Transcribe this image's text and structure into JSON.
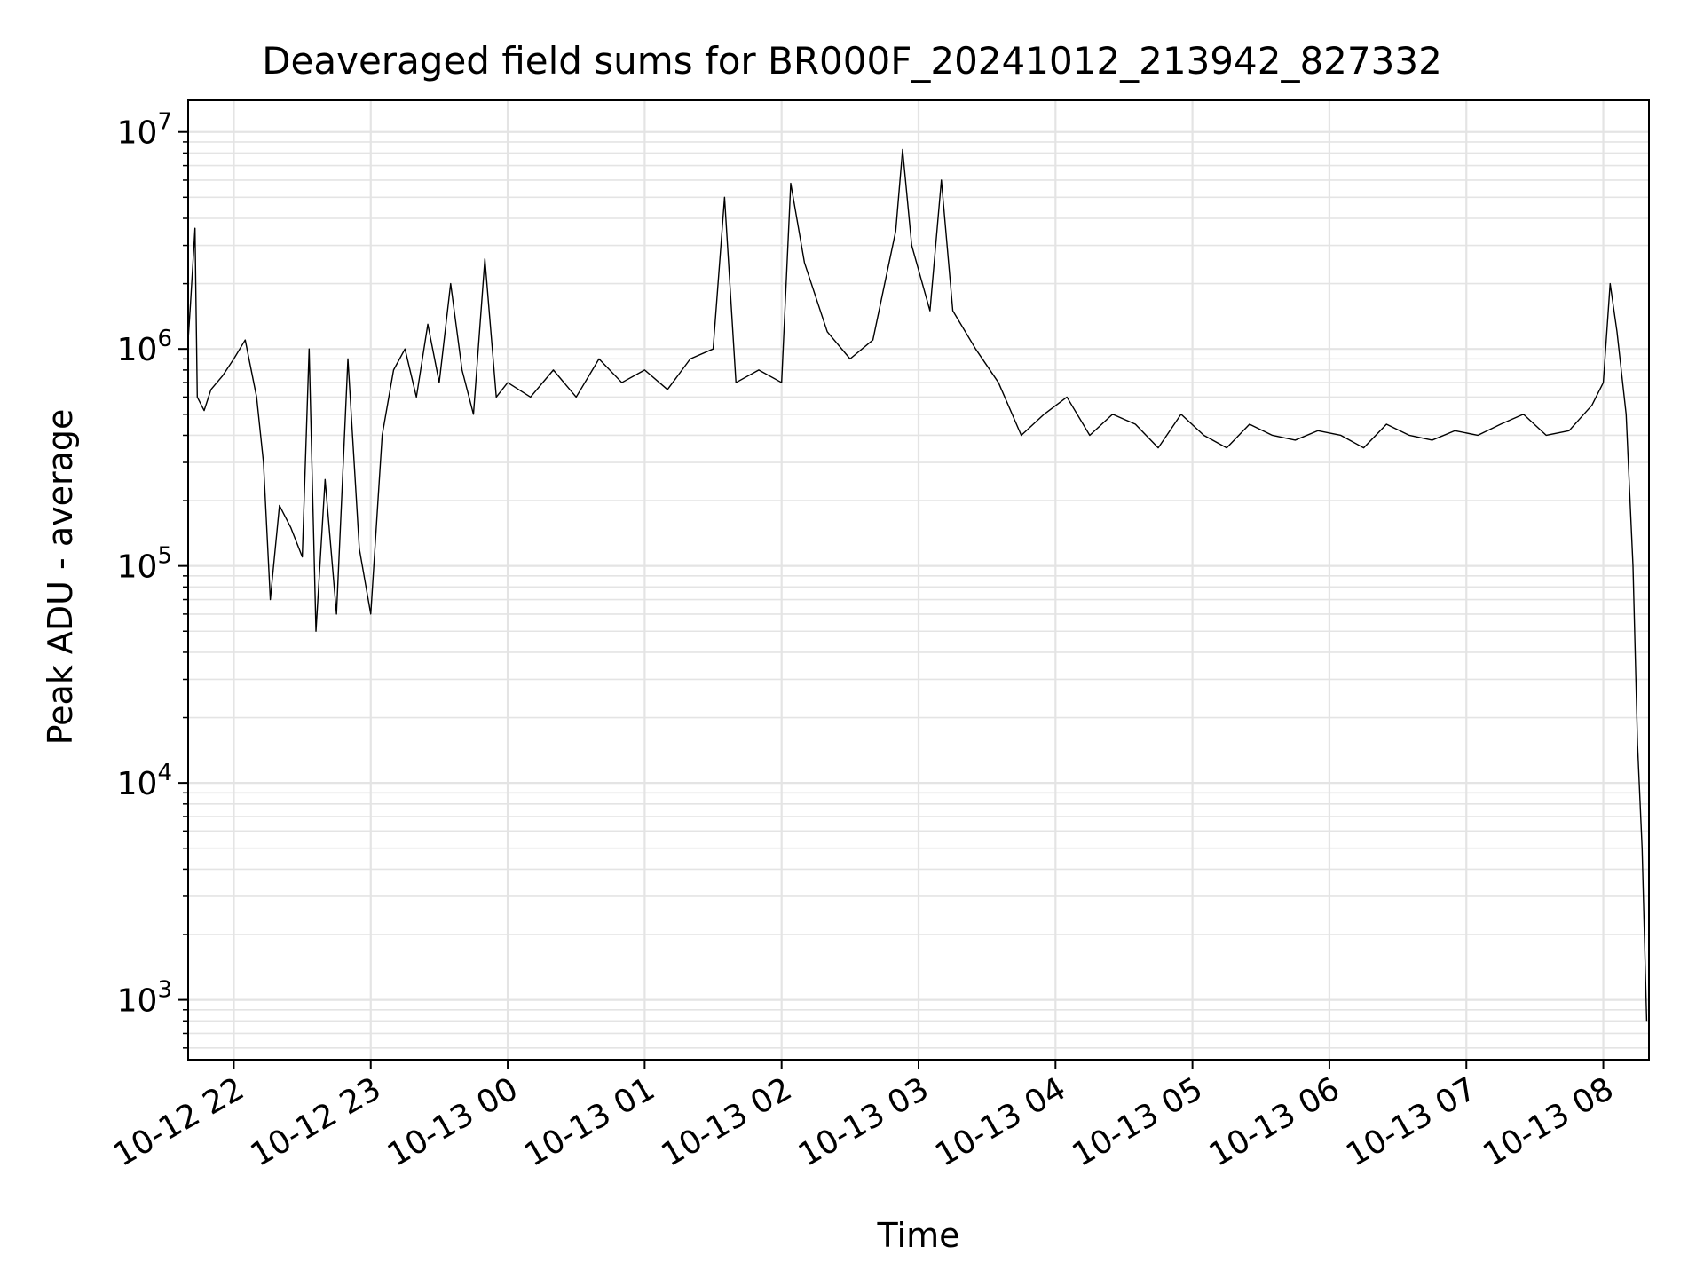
{
  "chart_data": {
    "type": "line",
    "title": "Deaveraged field sums for BR000F_20241012_213942_827332",
    "xlabel": "Time",
    "ylabel": "Peak ADU - average",
    "yscale": "log",
    "ylim": [
      530,
      14000000
    ],
    "xlim": [
      "2024-10-12 21:40",
      "2024-10-13 08:20"
    ],
    "grid": true,
    "line_color": "#000000",
    "x_ticks": [
      {
        "time": "2024-10-12 22:00",
        "label": "10-12 22"
      },
      {
        "time": "2024-10-12 23:00",
        "label": "10-12 23"
      },
      {
        "time": "2024-10-13 00:00",
        "label": "10-13 00"
      },
      {
        "time": "2024-10-13 01:00",
        "label": "10-13 01"
      },
      {
        "time": "2024-10-13 02:00",
        "label": "10-13 02"
      },
      {
        "time": "2024-10-13 03:00",
        "label": "10-13 03"
      },
      {
        "time": "2024-10-13 04:00",
        "label": "10-13 04"
      },
      {
        "time": "2024-10-13 05:00",
        "label": "10-13 05"
      },
      {
        "time": "2024-10-13 06:00",
        "label": "10-13 06"
      },
      {
        "time": "2024-10-13 07:00",
        "label": "10-13 07"
      },
      {
        "time": "2024-10-13 08:00",
        "label": "10-13 08"
      }
    ],
    "y_ticks": [
      {
        "value": 1000,
        "base": "10",
        "exp": "3"
      },
      {
        "value": 10000,
        "base": "10",
        "exp": "4"
      },
      {
        "value": 100000,
        "base": "10",
        "exp": "5"
      },
      {
        "value": 1000000,
        "base": "10",
        "exp": "6"
      },
      {
        "value": 10000000,
        "base": "10",
        "exp": "7"
      }
    ],
    "series": [
      {
        "points": [
          [
            "2024-10-12 21:40",
            1100000
          ],
          [
            "2024-10-12 21:41",
            1600000
          ],
          [
            "2024-10-12 21:43",
            3600000
          ],
          [
            "2024-10-12 21:44",
            600000
          ],
          [
            "2024-10-12 21:47",
            520000
          ],
          [
            "2024-10-12 21:50",
            650000
          ],
          [
            "2024-10-12 21:55",
            750000
          ],
          [
            "2024-10-12 22:00",
            900000
          ],
          [
            "2024-10-12 22:05",
            1100000
          ],
          [
            "2024-10-12 22:10",
            600000
          ],
          [
            "2024-10-12 22:13",
            300000
          ],
          [
            "2024-10-12 22:16",
            70000
          ],
          [
            "2024-10-12 22:20",
            190000
          ],
          [
            "2024-10-12 22:25",
            150000
          ],
          [
            "2024-10-12 22:30",
            110000
          ],
          [
            "2024-10-12 22:33",
            1000000
          ],
          [
            "2024-10-12 22:36",
            50000
          ],
          [
            "2024-10-12 22:40",
            250000
          ],
          [
            "2024-10-12 22:45",
            60000
          ],
          [
            "2024-10-12 22:50",
            900000
          ],
          [
            "2024-10-12 22:55",
            120000
          ],
          [
            "2024-10-12 23:00",
            60000
          ],
          [
            "2024-10-12 23:05",
            400000
          ],
          [
            "2024-10-12 23:10",
            800000
          ],
          [
            "2024-10-12 23:15",
            1000000
          ],
          [
            "2024-10-12 23:20",
            600000
          ],
          [
            "2024-10-12 23:25",
            1300000
          ],
          [
            "2024-10-12 23:30",
            700000
          ],
          [
            "2024-10-12 23:35",
            2000000
          ],
          [
            "2024-10-12 23:40",
            800000
          ],
          [
            "2024-10-12 23:45",
            500000
          ],
          [
            "2024-10-12 23:50",
            2600000
          ],
          [
            "2024-10-12 23:55",
            600000
          ],
          [
            "2024-10-13 00:00",
            700000
          ],
          [
            "2024-10-13 00:10",
            600000
          ],
          [
            "2024-10-13 00:20",
            800000
          ],
          [
            "2024-10-13 00:30",
            600000
          ],
          [
            "2024-10-13 00:40",
            900000
          ],
          [
            "2024-10-13 00:50",
            700000
          ],
          [
            "2024-10-13 01:00",
            800000
          ],
          [
            "2024-10-13 01:10",
            650000
          ],
          [
            "2024-10-13 01:20",
            900000
          ],
          [
            "2024-10-13 01:30",
            1000000
          ],
          [
            "2024-10-13 01:35",
            5000000
          ],
          [
            "2024-10-13 01:40",
            700000
          ],
          [
            "2024-10-13 01:50",
            800000
          ],
          [
            "2024-10-13 02:00",
            700000
          ],
          [
            "2024-10-13 02:04",
            5800000
          ],
          [
            "2024-10-13 02:10",
            2500000
          ],
          [
            "2024-10-13 02:20",
            1200000
          ],
          [
            "2024-10-13 02:30",
            900000
          ],
          [
            "2024-10-13 02:40",
            1100000
          ],
          [
            "2024-10-13 02:50",
            3500000
          ],
          [
            "2024-10-13 02:53",
            8300000
          ],
          [
            "2024-10-13 02:57",
            3000000
          ],
          [
            "2024-10-13 03:05",
            1500000
          ],
          [
            "2024-10-13 03:10",
            6000000
          ],
          [
            "2024-10-13 03:15",
            1500000
          ],
          [
            "2024-10-13 03:25",
            1000000
          ],
          [
            "2024-10-13 03:35",
            700000
          ],
          [
            "2024-10-13 03:45",
            400000
          ],
          [
            "2024-10-13 03:55",
            500000
          ],
          [
            "2024-10-13 04:05",
            600000
          ],
          [
            "2024-10-13 04:15",
            400000
          ],
          [
            "2024-10-13 04:25",
            500000
          ],
          [
            "2024-10-13 04:35",
            450000
          ],
          [
            "2024-10-13 04:45",
            350000
          ],
          [
            "2024-10-13 04:55",
            500000
          ],
          [
            "2024-10-13 05:05",
            400000
          ],
          [
            "2024-10-13 05:15",
            350000
          ],
          [
            "2024-10-13 05:25",
            450000
          ],
          [
            "2024-10-13 05:35",
            400000
          ],
          [
            "2024-10-13 05:45",
            380000
          ],
          [
            "2024-10-13 05:55",
            420000
          ],
          [
            "2024-10-13 06:05",
            400000
          ],
          [
            "2024-10-13 06:15",
            350000
          ],
          [
            "2024-10-13 06:25",
            450000
          ],
          [
            "2024-10-13 06:35",
            400000
          ],
          [
            "2024-10-13 06:45",
            380000
          ],
          [
            "2024-10-13 06:55",
            420000
          ],
          [
            "2024-10-13 07:05",
            400000
          ],
          [
            "2024-10-13 07:15",
            450000
          ],
          [
            "2024-10-13 07:25",
            500000
          ],
          [
            "2024-10-13 07:35",
            400000
          ],
          [
            "2024-10-13 07:45",
            420000
          ],
          [
            "2024-10-13 07:55",
            550000
          ],
          [
            "2024-10-13 08:00",
            700000
          ],
          [
            "2024-10-13 08:03",
            2000000
          ],
          [
            "2024-10-13 08:06",
            1200000
          ],
          [
            "2024-10-13 08:10",
            500000
          ],
          [
            "2024-10-13 08:13",
            100000
          ],
          [
            "2024-10-13 08:15",
            15000
          ],
          [
            "2024-10-13 08:17",
            5000
          ],
          [
            "2024-10-13 08:19",
            800
          ]
        ]
      }
    ]
  }
}
